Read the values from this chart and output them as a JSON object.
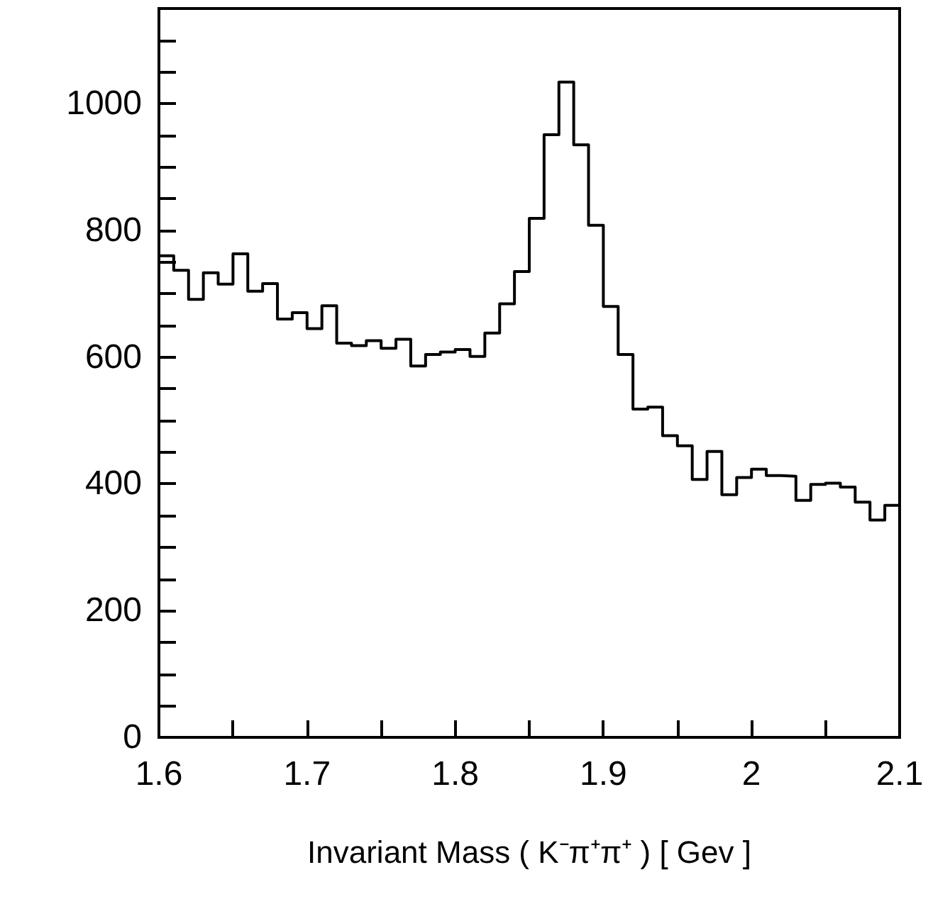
{
  "chart_data": {
    "type": "histogram",
    "xlabel": "Invariant Mass ( K⁻π⁺π⁺ ) [ Gev ]",
    "bins": [
      1.6,
      1.61,
      1.62,
      1.63,
      1.64,
      1.65,
      1.66,
      1.67,
      1.68,
      1.69,
      1.7,
      1.71,
      1.72,
      1.73,
      1.74,
      1.75,
      1.76,
      1.77,
      1.78,
      1.79,
      1.8,
      1.81,
      1.82,
      1.83,
      1.84,
      1.85,
      1.86,
      1.87,
      1.88,
      1.89,
      1.9,
      1.91,
      1.92,
      1.93,
      1.94,
      1.95,
      1.96,
      1.97,
      1.98,
      1.99,
      2.0,
      2.01,
      2.02,
      2.03,
      2.04,
      2.05,
      2.06,
      2.07,
      2.08,
      2.09,
      2.1
    ],
    "values": [
      760,
      737,
      691,
      733,
      715,
      763,
      704,
      716,
      660,
      670,
      645,
      681,
      622,
      618,
      626,
      614,
      628,
      586,
      604,
      608,
      612,
      601,
      638,
      684,
      735,
      819,
      951,
      1034,
      935,
      808,
      680,
      604,
      518,
      521,
      476,
      460,
      407,
      451,
      383,
      410,
      423,
      413,
      412,
      374,
      399,
      401,
      395,
      371,
      343,
      366
    ],
    "color": "#000000",
    "xlim": [
      1.6,
      2.1
    ],
    "xticks": [
      1.6,
      {
        "value": 1.65,
        "label": null
      },
      1.7,
      {
        "value": 1.75,
        "label": null
      },
      1.8,
      {
        "value": 1.85,
        "label": null
      },
      1.9,
      {
        "value": 1.95,
        "label": null
      },
      2,
      {
        "value": 2.05,
        "label": null
      },
      2.1
    ],
    "ylim": [
      0,
      1150
    ],
    "yticks": [
      0,
      {
        "value": 50,
        "label": null
      },
      {
        "value": 100,
        "label": null
      },
      {
        "value": 150,
        "label": null
      },
      200,
      {
        "value": 250,
        "label": null
      },
      {
        "value": 300,
        "label": null
      },
      {
        "value": 350,
        "label": null
      },
      400,
      {
        "value": 450,
        "label": null
      },
      {
        "value": 500,
        "label": null
      },
      {
        "value": 550,
        "label": null
      },
      600,
      {
        "value": 650,
        "label": null
      },
      {
        "value": 700,
        "label": null
      },
      {
        "value": 750,
        "label": null
      },
      800,
      {
        "value": 850,
        "label": null
      },
      {
        "value": 900,
        "label": null
      },
      {
        "value": 950,
        "label": null
      },
      1000,
      {
        "value": 1050,
        "label": null
      },
      {
        "value": 1100,
        "label": null
      }
    ],
    "grid": false
  }
}
